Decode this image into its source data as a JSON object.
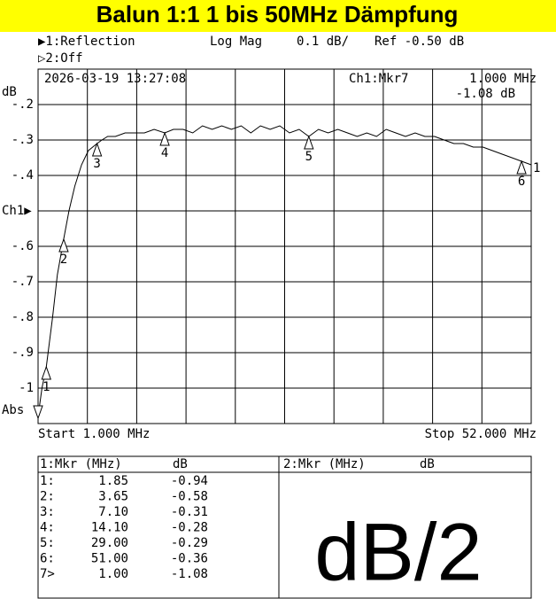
{
  "chart_data": {
    "type": "line",
    "title": "Balun 1:1  1 bis 50MHz Dämpfung",
    "trace1": "▶1:Reflection",
    "format": "Log Mag",
    "scale": "0.1 dB/",
    "ref": "Ref  -0.50 dB",
    "trace2": "▷2:Off",
    "timestamp": "2026-03-19 13:27:08",
    "active_marker": "Ch1:Mkr7",
    "active_marker_freq": "1.000 MHz",
    "active_marker_value": "-1.08 dB",
    "y_unit": "dB",
    "abs_label": "Abs",
    "start_label": "Start 1.000 MHz",
    "stop_label": "Stop 52.000 MHz",
    "xlim": [
      1,
      52
    ],
    "x_divisions": 10,
    "ylim": [
      -1.1,
      -0.1
    ],
    "yticks": [
      {
        "value": -0.2,
        "label": "-.2"
      },
      {
        "value": -0.3,
        "label": "-.3"
      },
      {
        "value": -0.4,
        "label": "-.4"
      },
      {
        "value": -0.5,
        "label": "Ch1▶"
      },
      {
        "value": -0.6,
        "label": "-.6"
      },
      {
        "value": -0.7,
        "label": "-.7"
      },
      {
        "value": -0.8,
        "label": "-.8"
      },
      {
        "value": -0.9,
        "label": "-.9"
      },
      -1
    ],
    "grid": true,
    "series": [
      {
        "name": "1",
        "color": "#000000",
        "x": [
          1,
          1.4,
          1.85,
          2.5,
          3,
          3.65,
          4.2,
          4.8,
          5.5,
          6.2,
          7.1,
          7.6,
          8.2,
          9,
          10,
          11,
          12,
          13,
          14.1,
          15,
          16,
          17,
          18,
          19,
          20,
          21,
          22,
          23,
          24,
          25,
          26,
          27,
          28,
          29,
          30,
          31,
          32,
          33,
          34,
          35,
          36,
          37,
          38,
          39,
          40,
          41,
          42,
          43,
          44,
          45,
          46,
          47,
          48,
          49,
          50,
          51,
          52
        ],
        "values": [
          -1.08,
          -1.0,
          -0.94,
          -0.8,
          -0.68,
          -0.58,
          -0.5,
          -0.43,
          -0.37,
          -0.33,
          -0.31,
          -0.3,
          -0.29,
          -0.29,
          -0.28,
          -0.28,
          -0.28,
          -0.27,
          -0.28,
          -0.27,
          -0.27,
          -0.28,
          -0.26,
          -0.27,
          -0.26,
          -0.27,
          -0.26,
          -0.28,
          -0.26,
          -0.27,
          -0.26,
          -0.28,
          -0.27,
          -0.29,
          -0.27,
          -0.28,
          -0.27,
          -0.28,
          -0.29,
          -0.28,
          -0.29,
          -0.27,
          -0.28,
          -0.29,
          -0.28,
          -0.29,
          -0.29,
          -0.3,
          -0.31,
          -0.31,
          -0.32,
          -0.32,
          -0.33,
          -0.34,
          -0.35,
          -0.36,
          -0.37
        ]
      }
    ],
    "markers": {
      "labels": [
        "1",
        "2",
        "3",
        "4",
        "5",
        "6",
        "7"
      ],
      "x": [
        1.85,
        3.65,
        7.1,
        14.1,
        29,
        51,
        1
      ],
      "values": [
        -0.94,
        -0.58,
        -0.31,
        -0.28,
        -0.29,
        -0.36,
        -1.08
      ],
      "row_labels": [
        "1:",
        "2:",
        "3:",
        "4:",
        "5:",
        "6:",
        "7>"
      ],
      "x_labels": [
        "1.85",
        "3.65",
        "7.10",
        "14.10",
        "29.00",
        "51.00",
        "1.00"
      ],
      "value_labels": [
        "-0.94",
        "-0.58",
        "-0.31",
        "-0.28",
        "-0.29",
        "-0.36",
        "-1.08"
      ]
    },
    "table_header_1": "1:Mkr (MHz)",
    "table_header_2": "2:Mkr (MHz)",
    "table_unit": "dB",
    "scale_note": "dB/2"
  }
}
